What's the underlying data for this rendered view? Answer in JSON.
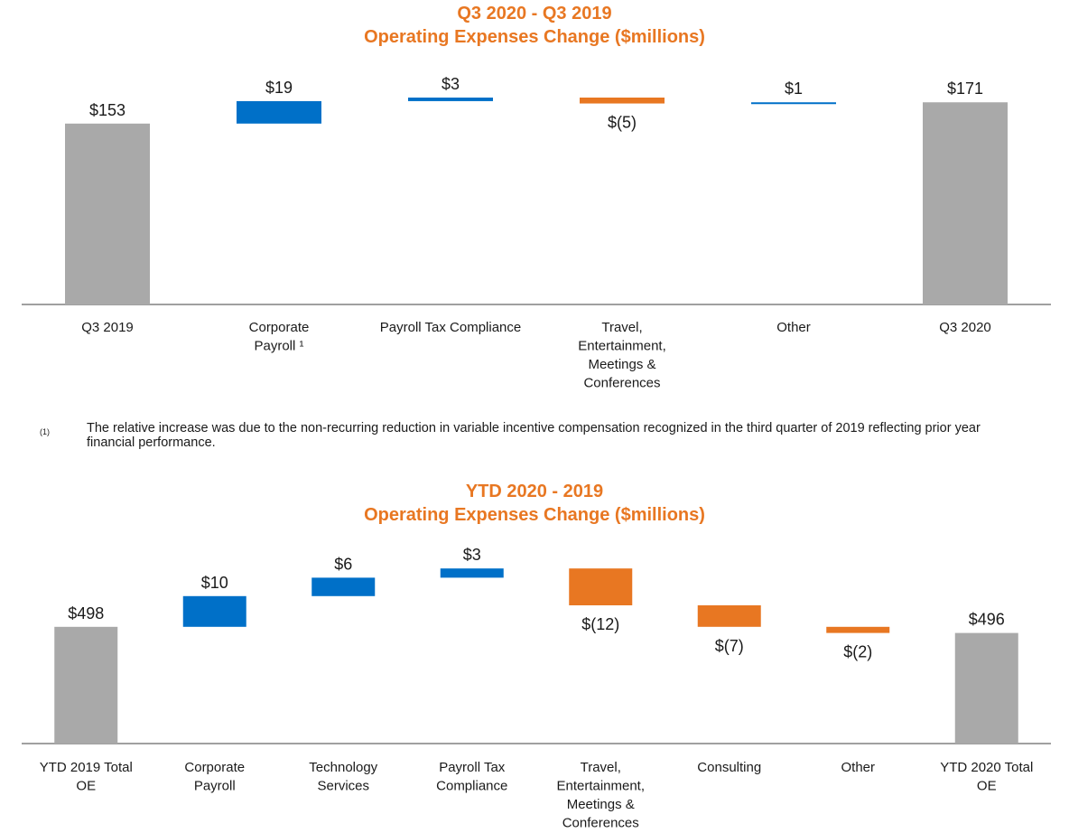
{
  "colors": {
    "increase": "#0070C8",
    "decrease": "#E87722",
    "total": "#A9A9A9",
    "title": "#E87722",
    "axis": "#808080"
  },
  "chart_data": [
    {
      "type": "bar",
      "subtype": "waterfall",
      "title": "Q3 2020 - Q3 2019",
      "subtitle": "Operating Expenses Change ($millions)",
      "categories": [
        [
          "Q3 2019"
        ],
        [
          "Corporate",
          "Payroll ¹"
        ],
        [
          "Payroll Tax Compliance"
        ],
        [
          "Travel,",
          "Entertainment,",
          "Meetings &",
          "Conferences"
        ],
        [
          "Other"
        ],
        [
          "Q3 2020"
        ]
      ],
      "values": [
        153,
        19,
        3,
        -5,
        1,
        171
      ],
      "kinds": [
        "total",
        "increase",
        "increase",
        "decrease",
        "increase",
        "total"
      ],
      "value_labels": [
        "$153",
        "$19",
        "$3",
        "$(5)",
        "$1",
        "$171"
      ],
      "ylim": [
        0,
        175
      ]
    },
    {
      "type": "bar",
      "subtype": "waterfall",
      "title": "YTD 2020 - 2019",
      "subtitle": "Operating Expenses Change ($millions)",
      "categories": [
        [
          "YTD 2019 Total",
          "OE"
        ],
        [
          "Corporate",
          "Payroll"
        ],
        [
          "Technology",
          "Services"
        ],
        [
          "Payroll Tax",
          "Compliance"
        ],
        [
          "Travel,",
          "Entertainment,",
          "Meetings &",
          "Conferences"
        ],
        [
          "Consulting"
        ],
        [
          "Other"
        ],
        [
          "YTD 2020 Total",
          "OE"
        ]
      ],
      "values": [
        498,
        10,
        6,
        3,
        -12,
        -7,
        -2,
        496
      ],
      "kinds": [
        "total",
        "increase",
        "increase",
        "increase",
        "decrease",
        "decrease",
        "decrease",
        "total"
      ],
      "value_labels": [
        "$498",
        "$10",
        "$6",
        "$3",
        "$(12)",
        "$(7)",
        "$(2)",
        "$496"
      ],
      "ylim": [
        460,
        520
      ]
    }
  ],
  "footnote": {
    "marker": "(1)",
    "text": "The relative increase was due to the non-recurring reduction in variable incentive compensation recognized in the third quarter of 2019 reflecting prior year financial performance."
  }
}
